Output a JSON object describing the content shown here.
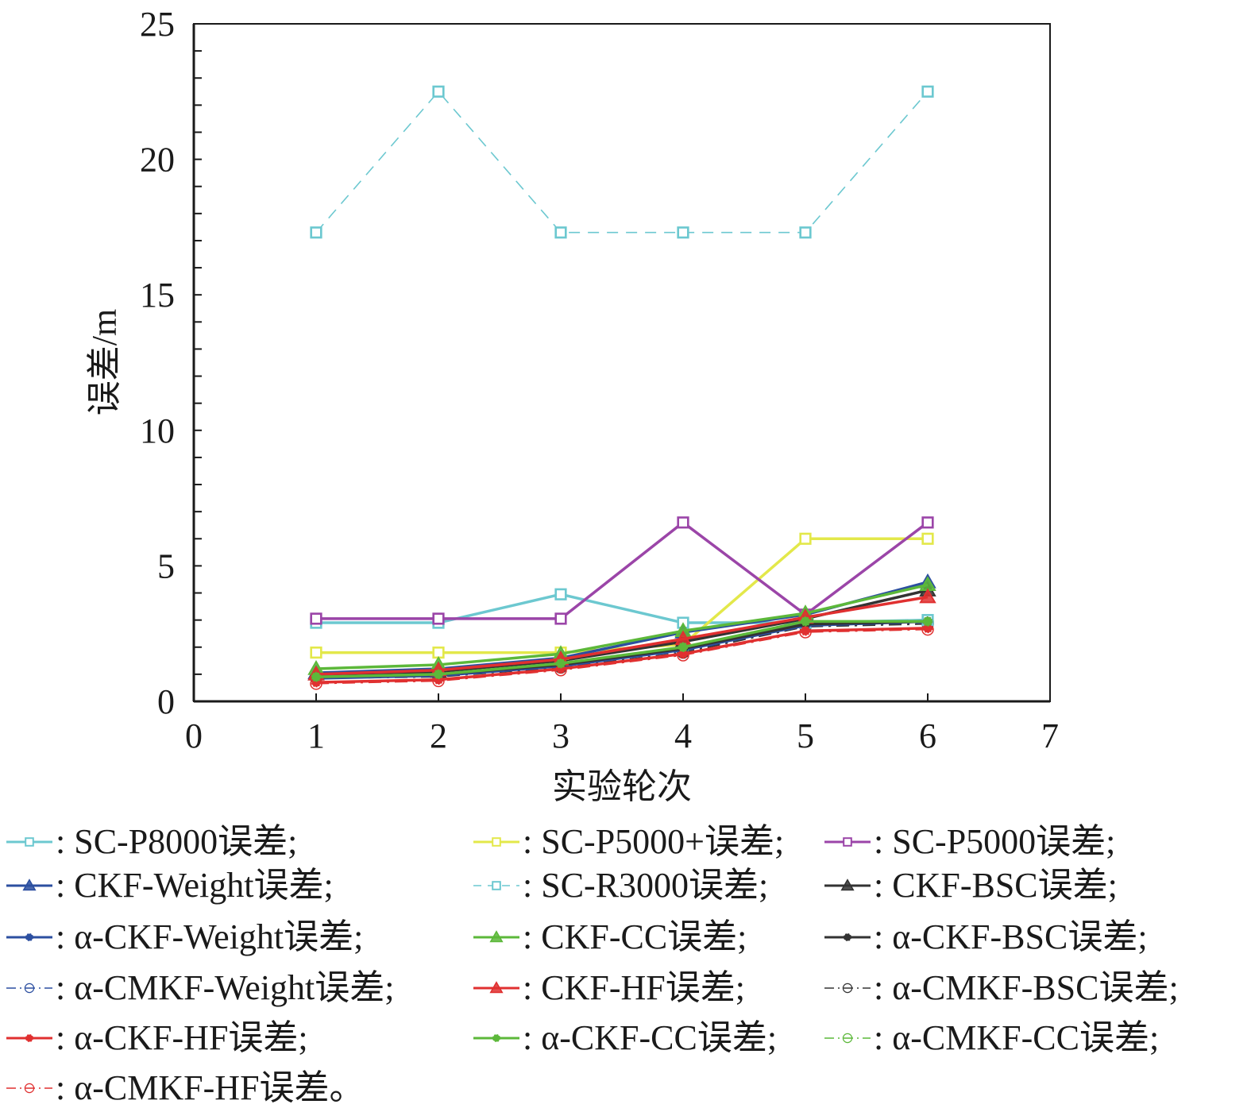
{
  "chart_data": {
    "type": "line",
    "title": "",
    "xlabel": "实验轮次",
    "ylabel": "误差/m",
    "xlim": [
      0,
      7
    ],
    "ylim": [
      0,
      25
    ],
    "xticks": [
      "0",
      "1",
      "2",
      "3",
      "4",
      "5",
      "6",
      "7"
    ],
    "yticks": [
      "0",
      "5",
      "10",
      "15",
      "20",
      "25"
    ],
    "grid": false,
    "legend_position": "bottom",
    "x": [
      1,
      2,
      3,
      4,
      5,
      6
    ],
    "series": [
      {
        "name": "SC-P8000误差;",
        "color": "#6cc8d0",
        "style": "solid",
        "marker": "square",
        "values": [
          2.9,
          2.9,
          3.95,
          2.9,
          2.9,
          3.0
        ]
      },
      {
        "name": "SC-P5000+误差;",
        "color": "#e3e84a",
        "style": "solid",
        "marker": "square",
        "values": [
          1.8,
          1.8,
          1.8,
          2.1,
          6.0,
          6.0
        ]
      },
      {
        "name": "SC-P5000误差;",
        "color": "#9b45a8",
        "style": "solid",
        "marker": "square",
        "values": [
          3.05,
          3.05,
          3.05,
          6.6,
          3.2,
          6.6
        ]
      },
      {
        "name": "CKF-Weight误差;",
        "color": "#2c4fa0",
        "style": "solid",
        "marker": "triangle",
        "values": [
          1.05,
          1.2,
          1.6,
          2.55,
          3.2,
          4.4
        ]
      },
      {
        "name": "SC-R3000误差;",
        "color": "#6cc8d0",
        "style": "dashed",
        "marker": "square",
        "values": [
          17.3,
          22.5,
          17.3,
          17.3,
          17.3,
          22.5
        ]
      },
      {
        "name": "CKF-BSC误差;",
        "color": "#333333",
        "style": "solid",
        "marker": "triangle",
        "values": [
          1.0,
          1.1,
          1.5,
          2.2,
          3.05,
          4.1
        ]
      },
      {
        "name": "α-CKF-Weight误差;",
        "color": "#2c4fa0",
        "style": "solid",
        "marker": "dot",
        "values": [
          0.85,
          0.95,
          1.3,
          1.9,
          2.8,
          2.95
        ]
      },
      {
        "name": "CKF-CC误差;",
        "color": "#5cb83a",
        "style": "solid",
        "marker": "triangle",
        "values": [
          1.2,
          1.35,
          1.75,
          2.6,
          3.25,
          4.3
        ]
      },
      {
        "name": "α-CKF-BSC误差;",
        "color": "#333333",
        "style": "solid",
        "marker": "dot",
        "values": [
          0.9,
          1.0,
          1.35,
          1.95,
          2.85,
          2.95
        ]
      },
      {
        "name": "α-CMKF-Weight误差;",
        "color": "#2c4fa0",
        "style": "dashdot",
        "marker": "circle",
        "values": [
          0.9,
          0.95,
          1.3,
          1.85,
          2.75,
          2.9
        ]
      },
      {
        "name": "CKF-HF误差;",
        "color": "#e03030",
        "style": "solid",
        "marker": "triangle",
        "values": [
          1.0,
          1.15,
          1.55,
          2.3,
          3.1,
          3.85
        ]
      },
      {
        "name": "α-CMKF-BSC误差;",
        "color": "#333333",
        "style": "dashdot",
        "marker": "circle",
        "values": [
          0.85,
          0.9,
          1.25,
          1.8,
          2.75,
          2.85
        ]
      },
      {
        "name": "α-CKF-HF误差;",
        "color": "#e03030",
        "style": "solid",
        "marker": "dot",
        "values": [
          0.7,
          0.8,
          1.2,
          1.75,
          2.6,
          2.7
        ]
      },
      {
        "name": "α-CKF-CC误差;",
        "color": "#5cb83a",
        "style": "solid",
        "marker": "dot",
        "values": [
          0.9,
          1.0,
          1.4,
          2.0,
          2.95,
          2.95
        ]
      },
      {
        "name": "α-CMKF-CC误差;",
        "color": "#5cb83a",
        "style": "dashdot",
        "marker": "circle",
        "values": [
          0.85,
          0.95,
          1.35,
          1.95,
          2.9,
          2.95
        ]
      },
      {
        "name": "α-CMKF-HF误差。",
        "color": "#e03030",
        "style": "dashdot",
        "marker": "circle",
        "values": [
          0.65,
          0.75,
          1.15,
          1.7,
          2.55,
          2.65
        ]
      }
    ]
  },
  "legend_layout": {
    "rows": [
      [
        0,
        1,
        2
      ],
      [
        3,
        4,
        5
      ],
      [
        6,
        7,
        8
      ],
      [
        9,
        10,
        11
      ],
      [
        12,
        13,
        14
      ],
      [
        15
      ]
    ]
  }
}
